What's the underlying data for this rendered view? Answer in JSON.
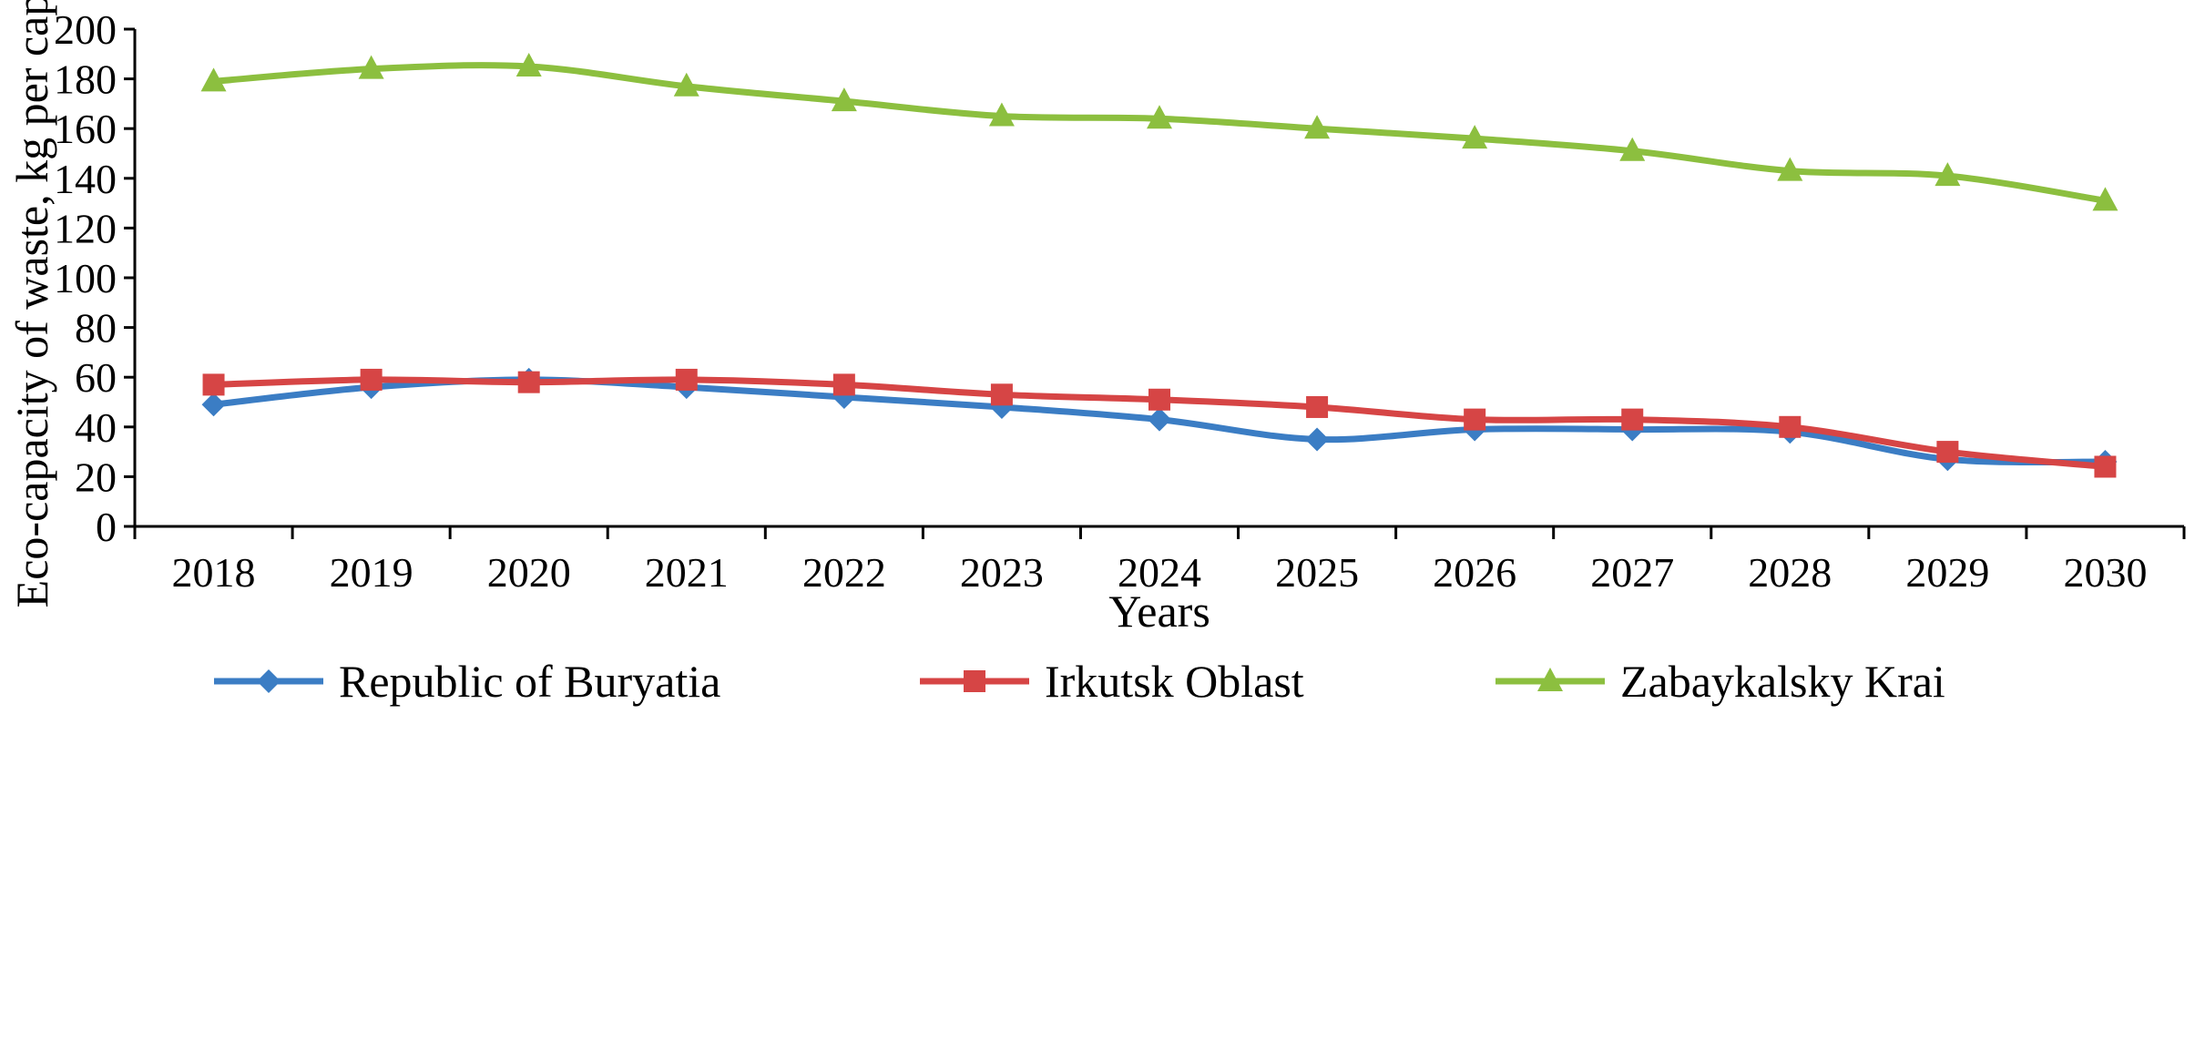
{
  "chart_data": {
    "type": "line",
    "title": "",
    "xlabel": "Years",
    "ylabel": "Eco-capacity of waste, kg per capita",
    "x": [
      "2018",
      "2019",
      "2020",
      "2021",
      "2022",
      "2023",
      "2024",
      "2025",
      "2026",
      "2027",
      "2028",
      "2029",
      "2030"
    ],
    "yticks": [
      "0",
      "20",
      "40",
      "60",
      "80",
      "100",
      "120",
      "140",
      "160",
      "180",
      "200"
    ],
    "ylim": [
      0,
      200
    ],
    "grid": false,
    "legend_position": "bottom",
    "series": [
      {
        "name": "Republic of Buryatia",
        "color": "#3b7dc4",
        "marker": "diamond",
        "values": [
          49,
          56,
          59,
          56,
          52,
          48,
          43,
          35,
          39,
          39,
          38,
          27,
          26
        ]
      },
      {
        "name": "Irkutsk Oblast",
        "color": "#d64545",
        "marker": "square",
        "values": [
          57,
          59,
          58,
          59,
          57,
          53,
          51,
          48,
          43,
          43,
          40,
          30,
          24
        ]
      },
      {
        "name": "Zabaykalsky Krai",
        "color": "#8cbf3f",
        "marker": "triangle",
        "values": [
          179,
          184,
          185,
          177,
          171,
          165,
          164,
          160,
          156,
          151,
          143,
          141,
          131
        ]
      }
    ]
  }
}
